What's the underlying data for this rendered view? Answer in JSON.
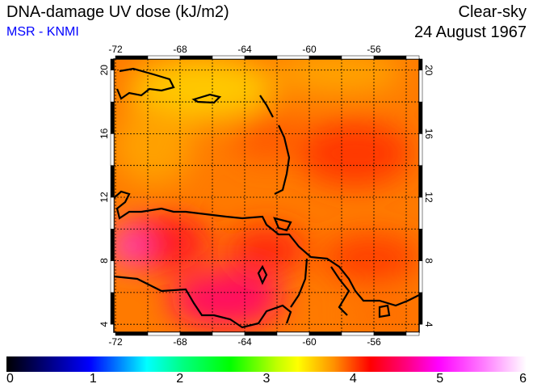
{
  "header": {
    "title": "DNA-damage UV dose (kJ/m2)",
    "source": "MSR - KNMI",
    "condition": "Clear-sky",
    "date": "24 August 1967"
  },
  "map": {
    "lon_ticks": [
      "-72",
      "-68",
      "-64",
      "-60",
      "-56"
    ],
    "lat_ticks": [
      "20",
      "16",
      "12",
      "8",
      "4"
    ],
    "lon_values": [
      -72,
      -68,
      -64,
      -60,
      -56
    ],
    "lat_values": [
      20,
      16,
      12,
      8,
      4
    ],
    "extent": {
      "lon": [
        -72.1,
        -53.2
      ],
      "lat": [
        3.5,
        20.7
      ]
    }
  },
  "colorbar": {
    "labels": [
      "0",
      "1",
      "2",
      "3",
      "4",
      "5",
      "6"
    ],
    "min": 0,
    "max": 6,
    "unit": "kJ/m2"
  }
}
